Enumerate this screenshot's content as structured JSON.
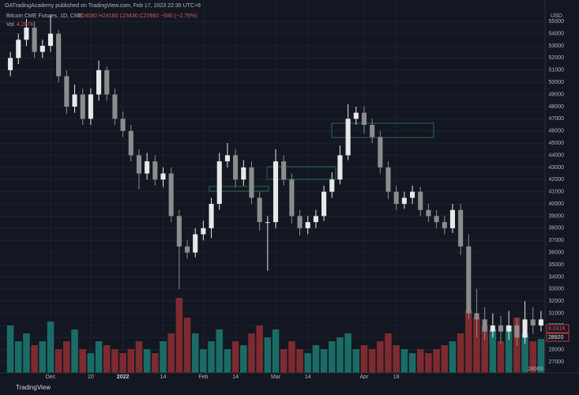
{
  "header": {
    "publisher": "OATradingAcademy published on TradingView.com, Feb 17, 2023 22:35 UTC+8",
    "symbol": "Bitcoin CME Futures, 1D, CME",
    "ohlc": "O24080 H24180 L23430 C23960 −680 (−2.76%)",
    "volume_title": "Vol",
    "volume_value": "4.287K",
    "currency": "USD",
    "volume_marker": "8.031K",
    "price_marker": "28920",
    "bottom_marker": "28000",
    "footer": "TradingView"
  },
  "chart_data": {
    "type": "candlestick",
    "categories": [
      null,
      null,
      null,
      null,
      null,
      "Dec",
      null,
      null,
      null,
      null,
      "20",
      null,
      null,
      null,
      "2022",
      null,
      null,
      null,
      null,
      "14",
      null,
      null,
      null,
      null,
      "Feb",
      null,
      null,
      null,
      "14",
      null,
      null,
      null,
      null,
      "Mar",
      null,
      null,
      null,
      "14",
      null,
      null,
      null,
      null,
      null,
      null,
      "Apr",
      null,
      null,
      null,
      "18",
      null,
      null,
      null,
      null,
      null,
      null,
      null,
      null,
      null,
      null,
      null,
      null,
      null,
      null,
      null,
      null,
      null,
      null
    ],
    "open": [
      51000,
      52000,
      53500,
      54500,
      52500,
      53000,
      54000,
      50500,
      48000,
      49000,
      47000,
      49000,
      51000,
      49000,
      47000,
      46000,
      44000,
      42500,
      43500,
      42000,
      42500,
      39000,
      36500,
      36000,
      37500,
      38000,
      40000,
      43500,
      44000,
      42000,
      43000,
      40500,
      38500,
      38500,
      43500,
      42000,
      39000,
      38000,
      38500,
      39000,
      41000,
      42000,
      44000,
      47000,
      47500,
      46500,
      45500,
      43000,
      41000,
      40000,
      40500,
      41000,
      39500,
      39000,
      38500,
      38000,
      39500,
      36500,
      31000,
      30500,
      29500,
      30000,
      29500,
      30000,
      29000,
      30500,
      30000
    ],
    "high": [
      52500,
      54000,
      55200,
      55000,
      53500,
      55500,
      54300,
      51000,
      49800,
      49500,
      49500,
      51800,
      51300,
      49500,
      47600,
      46500,
      44500,
      44200,
      44000,
      43000,
      43000,
      39500,
      37000,
      38000,
      38600,
      40500,
      44200,
      45000,
      44500,
      43600,
      43500,
      41000,
      39000,
      44500,
      44000,
      42500,
      39500,
      39000,
      39500,
      41500,
      42600,
      44800,
      48200,
      48000,
      48000,
      47000,
      46000,
      43500,
      41500,
      41000,
      41500,
      41400,
      40000,
      39500,
      39000,
      40000,
      40000,
      37500,
      33000,
      31500,
      31000,
      30800,
      31200,
      30600,
      32000,
      31500,
      31200
    ],
    "low": [
      50500,
      51500,
      53000,
      52000,
      52000,
      52500,
      50000,
      47400,
      47500,
      46500,
      46500,
      48500,
      48500,
      46500,
      45500,
      43500,
      41200,
      42000,
      41500,
      41400,
      38500,
      33000,
      35500,
      35600,
      37000,
      37200,
      39500,
      43000,
      41400,
      41500,
      40000,
      37800,
      34500,
      38000,
      41500,
      38400,
      37400,
      37500,
      38000,
      38600,
      40500,
      41600,
      43600,
      46500,
      45800,
      45000,
      42500,
      40400,
      39500,
      39600,
      40000,
      39000,
      38500,
      38000,
      37500,
      37600,
      35800,
      30500,
      29000,
      28800,
      29000,
      28500,
      28800,
      28300,
      28500,
      29300,
      29500
    ],
    "close": [
      52000,
      53500,
      54500,
      52500,
      53000,
      54000,
      50500,
      48000,
      49000,
      47000,
      49000,
      51000,
      49000,
      47000,
      46000,
      44000,
      42500,
      43500,
      42000,
      42500,
      39000,
      36500,
      36000,
      37500,
      38000,
      40000,
      43500,
      44000,
      42000,
      43000,
      40500,
      38500,
      38500,
      43500,
      42000,
      39000,
      38000,
      38500,
      39000,
      41000,
      42000,
      44000,
      47000,
      47500,
      46500,
      45500,
      43000,
      41000,
      40000,
      40500,
      41000,
      39500,
      39000,
      38500,
      38000,
      39500,
      36500,
      31000,
      30500,
      29500,
      30000,
      29500,
      30000,
      29000,
      30500,
      30000,
      30500
    ],
    "volume": {
      "values": [
        6,
        4,
        5,
        3.5,
        4,
        6.5,
        3,
        4,
        5.5,
        3,
        2.5,
        4,
        3.5,
        3,
        2.5,
        3,
        4,
        3,
        2.5,
        4,
        5,
        9.5,
        7,
        5,
        3,
        4,
        5.5,
        3,
        4,
        3.5,
        5,
        6,
        4.5,
        5.5,
        3,
        4,
        3,
        2.5,
        3.5,
        3,
        4,
        4.5,
        5,
        3,
        3.5,
        3,
        4,
        5,
        3.5,
        3,
        2.5,
        3,
        2.5,
        3,
        3.5,
        4,
        5,
        8,
        7,
        6,
        5.5,
        4,
        6,
        7,
        5,
        4,
        4.287
      ],
      "ylim": [
        0,
        12
      ],
      "up_color": "#1b6b66",
      "down_color": "#7d2a30"
    },
    "ylim": [
      26100,
      55600
    ],
    "yticks": [
      27000,
      28000,
      29000,
      30000,
      31000,
      32000,
      33000,
      34000,
      35000,
      36000,
      37000,
      38000,
      39000,
      40000,
      41000,
      42000,
      43000,
      44000,
      45000,
      46000,
      47000,
      48000,
      49000,
      50000,
      51000,
      52000,
      53000,
      54000,
      55000
    ],
    "grid": true,
    "up_color": "#e8e8e8",
    "down_color": "#8c8c8c"
  }
}
